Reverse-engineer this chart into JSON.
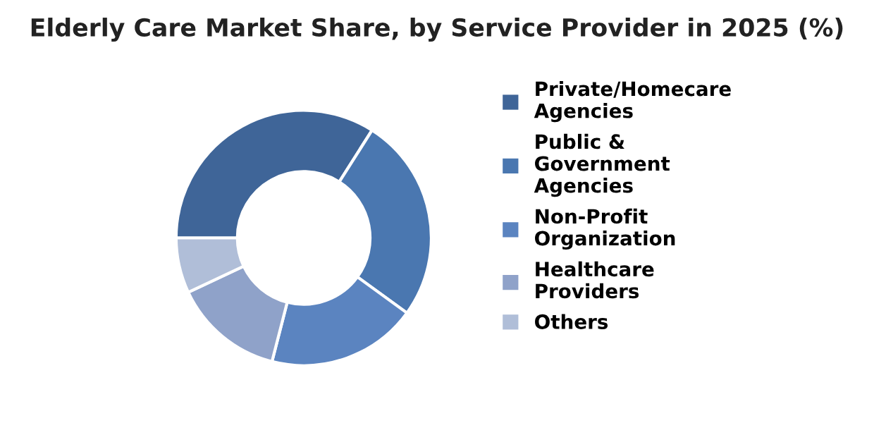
{
  "chart_data": {
    "type": "donut",
    "title": "Elderly Care Market Share, by Service Provider in 2025 (%)",
    "categories": [
      "Private/Homecare\nAgencies",
      "Public &\nGovernment\nAgencies",
      "Non-Profit\nOrganization",
      "Healthcare\nProviders",
      "Others"
    ],
    "values": [
      34,
      26,
      19,
      14,
      7
    ],
    "colors": [
      "#3f6598",
      "#4a77b0",
      "#5b84c0",
      "#8fa2c9",
      "#b0bed8"
    ],
    "legend": "right"
  }
}
